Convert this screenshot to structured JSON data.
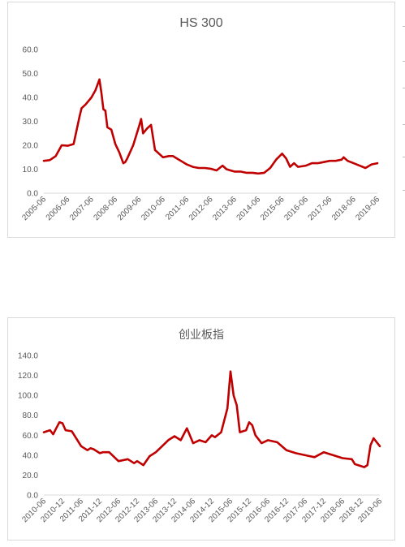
{
  "chart_data": [
    {
      "type": "line",
      "title": "HS 300",
      "xlabel": "",
      "ylabel": "",
      "ylim": [
        0,
        60
      ],
      "yticks": [
        "0.0",
        "10.0",
        "20.0",
        "30.0",
        "40.0",
        "50.0",
        "60.0"
      ],
      "xticks": [
        "2005-06",
        "2006-06",
        "2007-06",
        "2008-06",
        "2009-06",
        "2010-06",
        "2011-06",
        "2012-06",
        "2013-06",
        "2014-06",
        "2015-06",
        "2016-06",
        "2017-06",
        "2018-06",
        "2019-06"
      ],
      "grid": false,
      "legend": "none",
      "color": "#c00000",
      "series": [
        {
          "x": [
            "2005-06",
            "2005-09",
            "2005-12",
            "2006-03",
            "2006-06",
            "2006-09",
            "2006-12",
            "2007-01",
            "2007-03",
            "2007-06",
            "2007-08",
            "2007-10",
            "2007-11",
            "2007-12",
            "2008-01",
            "2008-02",
            "2008-04",
            "2008-06",
            "2008-08",
            "2008-10",
            "2008-11",
            "2008-12",
            "2009-03",
            "2009-06",
            "2009-07",
            "2009-08",
            "2009-10",
            "2009-12",
            "2010-02",
            "2010-04",
            "2010-06",
            "2010-09",
            "2010-11",
            "2011-01",
            "2011-04",
            "2011-06",
            "2011-09",
            "2011-12",
            "2012-03",
            "2012-06",
            "2012-09",
            "2012-12",
            "2013-02",
            "2013-04",
            "2013-06",
            "2013-09",
            "2013-12",
            "2014-03",
            "2014-06",
            "2014-09",
            "2014-12",
            "2015-03",
            "2015-06",
            "2015-08",
            "2015-10",
            "2015-12",
            "2016-02",
            "2016-06",
            "2016-09",
            "2016-12",
            "2017-03",
            "2017-06",
            "2017-09",
            "2017-12",
            "2018-01",
            "2018-03",
            "2018-06",
            "2018-09",
            "2018-12",
            "2019-03",
            "2019-06"
          ],
          "values": [
            13.5,
            13.8,
            15.5,
            20,
            19.8,
            20.5,
            32,
            35.5,
            37,
            40,
            43,
            47.5,
            42,
            35,
            34.5,
            27.5,
            26.5,
            20.5,
            17,
            12.5,
            13,
            14.5,
            20,
            28,
            31,
            25,
            27,
            28.5,
            18,
            16.5,
            15,
            15.5,
            15.5,
            14.5,
            13,
            12,
            11,
            10.5,
            10.5,
            10.2,
            9.5,
            11.5,
            10,
            9.5,
            9,
            9,
            8.5,
            8.5,
            8.2,
            8.5,
            10.5,
            14,
            16.5,
            14.5,
            11,
            12.5,
            11,
            11.5,
            12.5,
            12.5,
            13,
            13.5,
            13.5,
            14,
            15,
            13.5,
            12.5,
            11.5,
            10.5,
            12,
            12.5
          ]
        }
      ]
    },
    {
      "type": "line",
      "title": "创业板指",
      "xlabel": "",
      "ylabel": "",
      "ylim": [
        0,
        140
      ],
      "yticks": [
        "0.0",
        "20.0",
        "40.0",
        "60.0",
        "80.0",
        "100.0",
        "120.0",
        "140.0"
      ],
      "xticks": [
        "2010-06",
        "2010-12",
        "2011-06",
        "2011-12",
        "2012-06",
        "2012-12",
        "2013-06",
        "2013-12",
        "2014-06",
        "2014-12",
        "2015-06",
        "2015-12",
        "2016-06",
        "2016-12",
        "2017-06",
        "2017-12",
        "2018-06",
        "2018-12",
        "2019-06"
      ],
      "grid": false,
      "legend": "none",
      "color": "#c00000",
      "series": [
        {
          "x": [
            "2010-06",
            "2010-07",
            "2010-08",
            "2010-09",
            "2010-10",
            "2010-11",
            "2010-12",
            "2011-01",
            "2011-03",
            "2011-06",
            "2011-08",
            "2011-09",
            "2011-10",
            "2011-12",
            "2012-01",
            "2012-03",
            "2012-06",
            "2012-09",
            "2012-11",
            "2012-12",
            "2013-02",
            "2013-04",
            "2013-06",
            "2013-08",
            "2013-10",
            "2013-12",
            "2014-02",
            "2014-04",
            "2014-06",
            "2014-08",
            "2014-10",
            "2014-12",
            "2015-01",
            "2015-03",
            "2015-05",
            "2015-06",
            "2015-07",
            "2015-08",
            "2015-09",
            "2015-11",
            "2015-12",
            "2016-01",
            "2016-02",
            "2016-04",
            "2016-06",
            "2016-09",
            "2016-12",
            "2017-03",
            "2017-06",
            "2017-09",
            "2017-12",
            "2018-03",
            "2018-06",
            "2018-09",
            "2018-10",
            "2018-12",
            "2019-01",
            "2019-02",
            "2019-03",
            "2019-04",
            "2019-06"
          ],
          "values": [
            63,
            64,
            65,
            61,
            67,
            73,
            72,
            65,
            64,
            49,
            45,
            47,
            46,
            42,
            43,
            43,
            34,
            36,
            32,
            34,
            30,
            39,
            43,
            49,
            55,
            59,
            55,
            67,
            52,
            55,
            53,
            60,
            58,
            63,
            87,
            124,
            100,
            90,
            63,
            65,
            73,
            70,
            60,
            52,
            55,
            53,
            45,
            42,
            40,
            38,
            43,
            40,
            37,
            36,
            31,
            29,
            28,
            30,
            50,
            57,
            49
          ]
        }
      ]
    }
  ]
}
